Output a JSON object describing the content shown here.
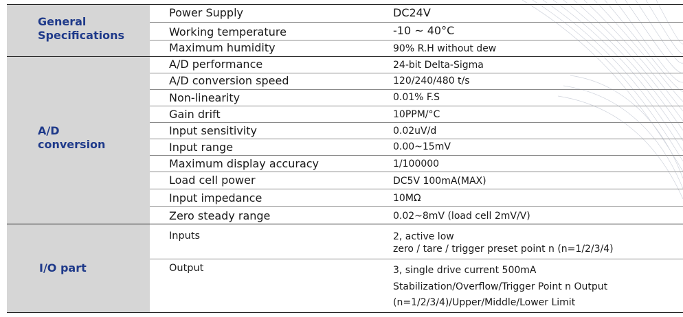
{
  "sections": [
    {
      "category": [
        "General",
        "Specifications"
      ],
      "rows": [
        {
          "label": "Power Supply",
          "value": [
            "DC24V"
          ]
        },
        {
          "label": "Working temperature",
          "value": [
            "-10 ~ 40°C"
          ]
        },
        {
          "label": "Maximum humidity",
          "value": [
            "90% R.H without dew"
          ]
        }
      ]
    },
    {
      "category": [
        "A/D",
        "conversion"
      ],
      "rows": [
        {
          "label": "A/D performance",
          "value": [
            "24-bit Delta-Sigma"
          ]
        },
        {
          "label": "A/D conversion speed",
          "value": [
            "120/240/480 t/s"
          ]
        },
        {
          "label": "Non-linearity",
          "value": [
            "0.01% F.S"
          ]
        },
        {
          "label": "Gain drift",
          "value": [
            "10PPM/°C"
          ]
        },
        {
          "label": "Input sensitivity",
          "value": [
            "0.02uV/d"
          ]
        },
        {
          "label": "Input range",
          "value": [
            "0.00~15mV"
          ]
        },
        {
          "label": "Maximum display accuracy",
          "value": [
            "1/100000"
          ]
        },
        {
          "label": "Load cell power",
          "value": [
            "DC5V 100mA(MAX)"
          ]
        },
        {
          "label": "Input impedance",
          "value": [
            "10MΩ"
          ]
        },
        {
          "label": "Zero steady range",
          "value": [
            "0.02~8mV (load cell 2mV/V)"
          ]
        }
      ]
    },
    {
      "category": [
        "I/O part"
      ],
      "rows": [
        {
          "label": "Inputs",
          "value": [
            "2, active low",
            "zero / tare / trigger preset point n (n=1/2/3/4)"
          ]
        },
        {
          "label": "Output",
          "value": [
            "3, single drive current 500mA",
            "Stabilization/Overflow/Trigger Point n Output",
            "(n=1/2/3/4)/Upper/Middle/Lower Limit"
          ]
        }
      ]
    }
  ]
}
